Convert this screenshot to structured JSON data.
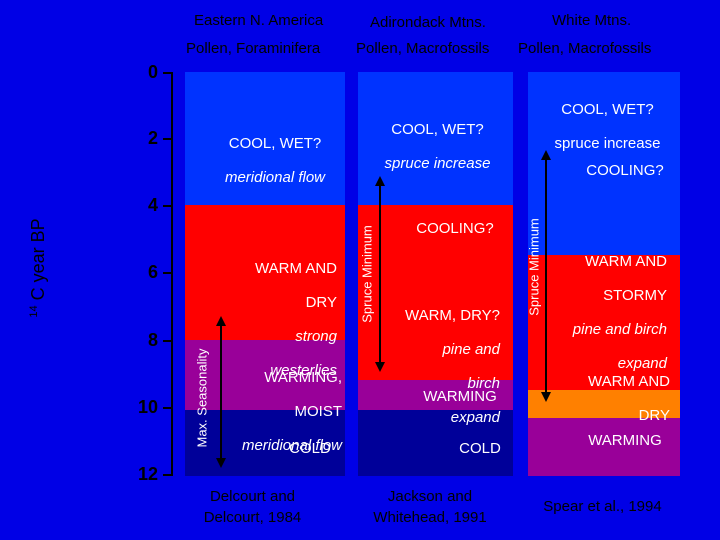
{
  "headers": {
    "col1_region": "Eastern N. America",
    "col1_proxy": "Pollen, Foraminifera",
    "col2_region": "Adirondack Mtns.",
    "col2_proxy": "Pollen, Macrofossils",
    "col3_region": "White Mtns.",
    "col3_proxy": "Pollen, Macrofossils"
  },
  "y_axis": {
    "label_sup": "14",
    "label": "C year BP",
    "ticks": [
      "0",
      "2",
      "4",
      "6",
      "8",
      "10",
      "12"
    ]
  },
  "col1": {
    "cool_wet_line1": "COOL,  WET?",
    "cool_wet_line2": "meridional flow",
    "warm_dry_line1": "WARM AND",
    "warm_dry_line2": "DRY",
    "warm_dry_line3": "strong",
    "warm_dry_line4": "westerlies",
    "warming_line1": "WARMING,",
    "warming_line2": "MOIST",
    "warming_line3": "meridional flow",
    "cold": "COLD",
    "vertical_label": "Max. Seasonality",
    "citation": "Delcourt and\nDelcourt, 1984"
  },
  "col2": {
    "cool_wet_line1": "COOL,  WET?",
    "cool_wet_line2": "spruce increase",
    "cooling": "COOLING?",
    "warm_dry_line1": "WARM,  DRY?",
    "warm_dry_line2": "pine and",
    "warm_dry_line3": "birch",
    "warm_dry_line4": "expand",
    "warming": "WARMING",
    "cold": "COLD",
    "vertical_label": "Spruce Minimum",
    "citation": "Jackson and\nWhitehead, 1991"
  },
  "col3": {
    "cool_wet_line1": "COOL,  WET?",
    "cool_wet_line2": "spruce increase",
    "cooling": "COOLING?",
    "warm_stormy_line1": "WARM AND",
    "warm_stormy_line2": "STORMY",
    "warm_stormy_line3": "pine and birch",
    "warm_stormy_line4": "expand",
    "warm_dry_line1": "WARM AND",
    "warm_dry_line2": "DRY",
    "warming": "WARMING",
    "vertical_label": "Spruce Minimum",
    "citation": "Spear et al., 1994"
  },
  "colors": {
    "background": "#0000e6",
    "cool_blue": "#0033ff",
    "warm_red": "#ff0000",
    "warming_purple": "#990099",
    "cold_navy": "#000099",
    "orange": "#ff8000"
  }
}
